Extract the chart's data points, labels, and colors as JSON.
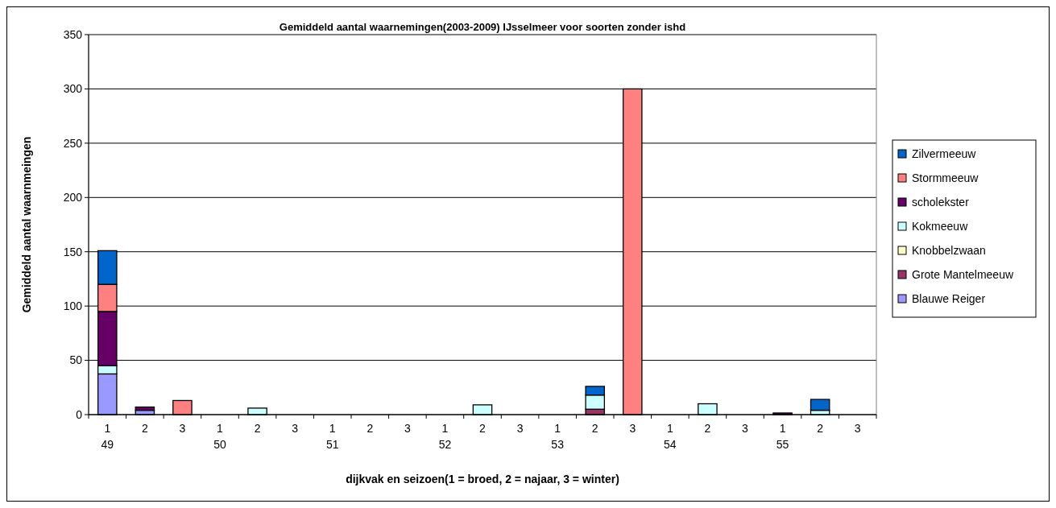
{
  "chart_data": {
    "type": "bar",
    "stacked": true,
    "title": "Gemiddeld aantal waarnemingen(2003-2009) IJsselmeer voor soorten zonder ishd",
    "xlabel": "dijkvak en seizoen(1 = broed, 2 = najaar, 3 = winter)",
    "ylabel": "Gemiddeld aantal waarnmeingen",
    "categories": [
      "1\n49",
      "2",
      "3",
      "1\n50",
      "2",
      "3",
      "1\n51",
      "2",
      "3",
      "1\n52",
      "2",
      "3",
      "1\n53",
      "2",
      "3",
      "1\n54",
      "2",
      "3",
      "1\n55",
      "2",
      "3"
    ],
    "series": [
      {
        "name": "Blauwe Reiger",
        "color": "#9999ff",
        "values": [
          37.5,
          4,
          null,
          null,
          null,
          null,
          null,
          null,
          null,
          null,
          null,
          null,
          null,
          null,
          null,
          null,
          null,
          null,
          null,
          null,
          null
        ]
      },
      {
        "name": "Grote Mantelmeeuw",
        "color": "#993366",
        "values": [
          null,
          null,
          null,
          null,
          null,
          null,
          null,
          null,
          null,
          null,
          null,
          null,
          null,
          5,
          null,
          null,
          null,
          null,
          null,
          null,
          null
        ]
      },
      {
        "name": "Knobbelzwaan",
        "color": "#ffffcc",
        "values": [
          null,
          null,
          null,
          null,
          null,
          null,
          null,
          null,
          null,
          null,
          null,
          null,
          null,
          null,
          null,
          null,
          null,
          null,
          null,
          null,
          null
        ]
      },
      {
        "name": "Kokmeeuw",
        "color": "#ccffff",
        "values": [
          7.5,
          null,
          null,
          null,
          6,
          null,
          null,
          null,
          null,
          null,
          9,
          null,
          null,
          13,
          null,
          null,
          10,
          null,
          null,
          4,
          null
        ]
      },
      {
        "name": "scholekster",
        "color": "#660066",
        "values": [
          50,
          3,
          null,
          null,
          null,
          null,
          null,
          null,
          null,
          null,
          null,
          null,
          null,
          null,
          null,
          null,
          null,
          null,
          1.5,
          null,
          null
        ]
      },
      {
        "name": "Stormmeeuw",
        "color": "#ff8080",
        "values": [
          25,
          null,
          13,
          null,
          null,
          null,
          null,
          null,
          null,
          null,
          null,
          null,
          null,
          null,
          300,
          null,
          null,
          null,
          null,
          null,
          null
        ]
      },
      {
        "name": "Zilvermeeuw",
        "color": "#0066cc",
        "values": [
          31,
          null,
          null,
          null,
          null,
          null,
          null,
          null,
          null,
          null,
          null,
          null,
          null,
          8,
          null,
          null,
          null,
          null,
          null,
          10,
          null
        ]
      }
    ],
    "ylim": [
      0,
      350
    ],
    "yticks": [
      0,
      50,
      100,
      150,
      200,
      250,
      300,
      350
    ],
    "grid": "y",
    "legend": "right"
  }
}
